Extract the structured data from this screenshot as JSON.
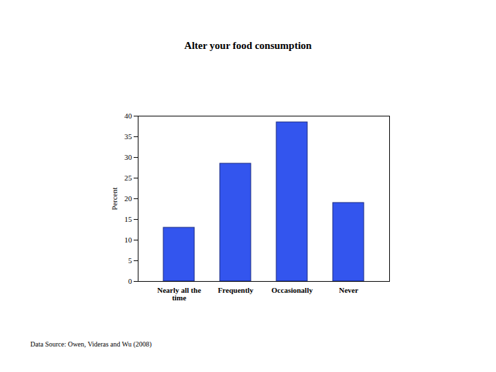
{
  "chart_data": {
    "type": "bar",
    "title": "Alter your food consumption",
    "caption": "Data Source: Owen, Videras and Wu (2008)",
    "y_label": "Percent",
    "categories": [
      "Nearly all the time",
      "Frequently",
      "Occasionally",
      "Never"
    ],
    "values": [
      13,
      28.5,
      38.5,
      19
    ],
    "color": "#3355ee",
    "ylim": [
      0,
      40
    ],
    "yticks": [
      0,
      5,
      10,
      15,
      20,
      25,
      30,
      35,
      40
    ],
    "grid": false
  }
}
